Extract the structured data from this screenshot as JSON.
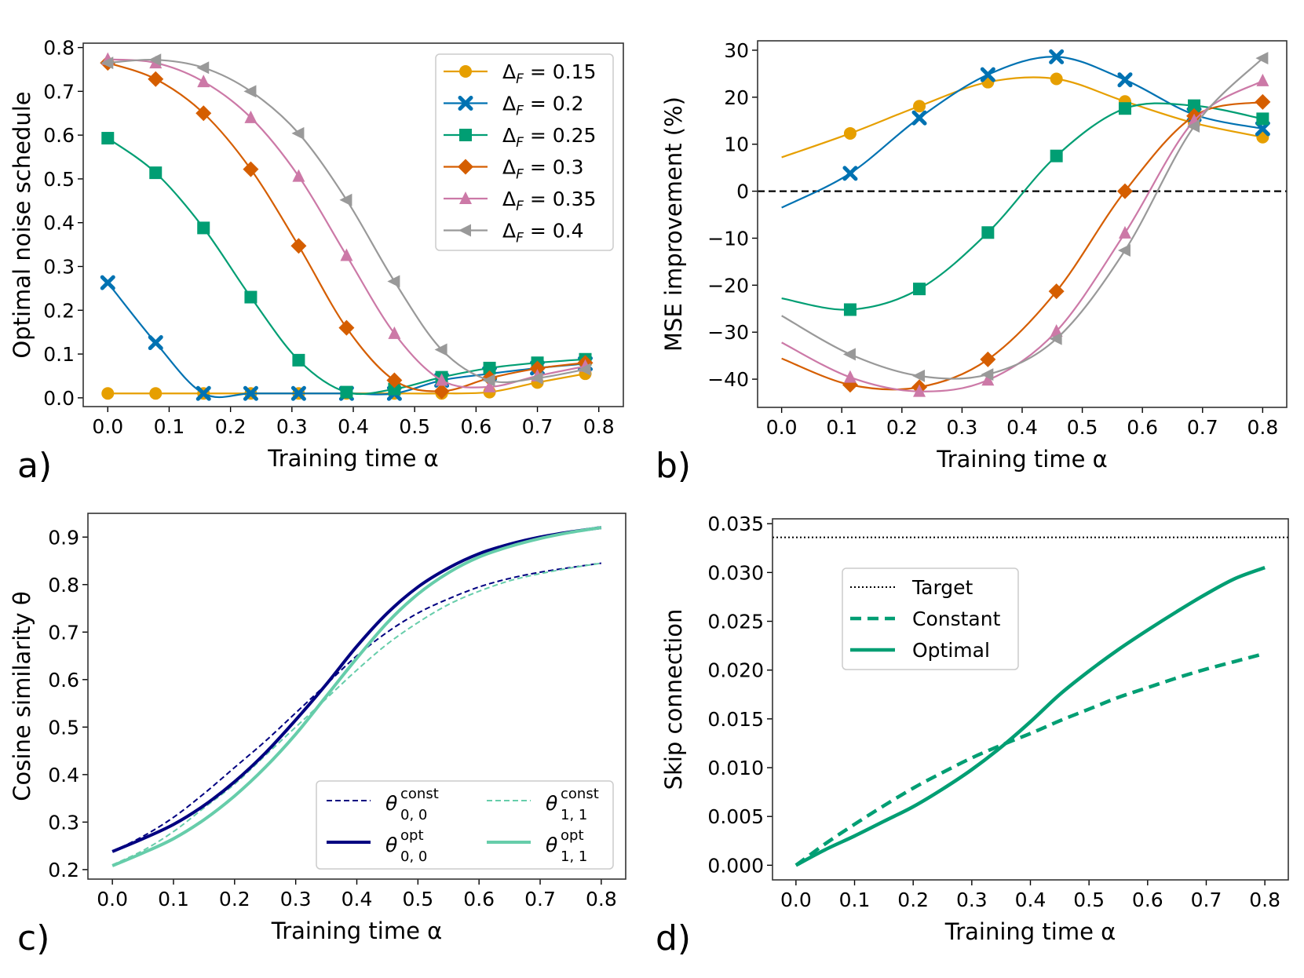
{
  "figure": {
    "panels": [
      "a)",
      "b)",
      "c)",
      "d)"
    ]
  },
  "chart_data": [
    {
      "id": "a",
      "type": "line",
      "title": "",
      "xlabel": "Training time α",
      "ylabel": "Optimal noise schedule",
      "xlim": [
        -0.04,
        0.84
      ],
      "ylim": [
        -0.02,
        0.81
      ],
      "xticks": [
        "0.0",
        "0.1",
        "0.2",
        "0.3",
        "0.4",
        "0.5",
        "0.6",
        "0.7",
        "0.8"
      ],
      "yticks": [
        "0.0",
        "0.1",
        "0.2",
        "0.3",
        "0.4",
        "0.5",
        "0.6",
        "0.7",
        "0.8"
      ],
      "grid": false,
      "legend_position": "top-right",
      "x": [
        0.0,
        0.078,
        0.156,
        0.233,
        0.311,
        0.389,
        0.467,
        0.544,
        0.622,
        0.7,
        0.778
      ],
      "series": [
        {
          "name": "Δ_F = 0.15",
          "label_main": "Δ",
          "label_sub": "F",
          "label_value": " = 0.15",
          "color": "#E69F00",
          "marker": "circle",
          "values": [
            0.01,
            0.01,
            0.01,
            0.01,
            0.01,
            0.01,
            0.01,
            0.01,
            0.013,
            0.035,
            0.055
          ]
        },
        {
          "name": "Δ_F = 0.2",
          "label_main": "Δ",
          "label_sub": "F",
          "label_value": " = 0.2",
          "color": "#0072B2",
          "marker": "x",
          "values": [
            0.263,
            0.126,
            0.01,
            0.01,
            0.01,
            0.01,
            0.01,
            0.04,
            0.055,
            0.068,
            0.078
          ]
        },
        {
          "name": "Δ_F = 0.25",
          "label_main": "Δ",
          "label_sub": "F",
          "label_value": " = 0.25",
          "color": "#009E73",
          "marker": "square",
          "values": [
            0.593,
            0.514,
            0.388,
            0.23,
            0.086,
            0.013,
            0.02,
            0.047,
            0.068,
            0.08,
            0.088
          ]
        },
        {
          "name": "Δ_F = 0.3",
          "label_main": "Δ",
          "label_sub": "F",
          "label_value": " = 0.3",
          "color": "#D55E00",
          "marker": "diamond",
          "values": [
            0.765,
            0.728,
            0.65,
            0.522,
            0.347,
            0.16,
            0.04,
            0.015,
            0.045,
            0.067,
            0.08
          ]
        },
        {
          "name": "Δ_F = 0.35",
          "label_main": "Δ",
          "label_sub": "F",
          "label_value": " = 0.35",
          "color": "#CC79A7",
          "marker": "triangle-up",
          "values": [
            0.773,
            0.765,
            0.722,
            0.64,
            0.506,
            0.325,
            0.147,
            0.04,
            0.025,
            0.05,
            0.072
          ]
        },
        {
          "name": "Δ_F = 0.4",
          "label_main": "Δ",
          "label_sub": "F",
          "label_value": " = 0.4",
          "color": "#999999",
          "marker": "triangle-left",
          "values": [
            0.765,
            0.772,
            0.754,
            0.7,
            0.604,
            0.452,
            0.266,
            0.11,
            0.04,
            0.045,
            0.065
          ]
        }
      ]
    },
    {
      "id": "b",
      "type": "line",
      "title": "",
      "xlabel": "Training time α",
      "ylabel": "MSE improvement (%)",
      "xlim": [
        -0.04,
        0.84
      ],
      "ylim": [
        -46,
        32
      ],
      "xticks": [
        "0.0",
        "0.1",
        "0.2",
        "0.3",
        "0.4",
        "0.5",
        "0.6",
        "0.7",
        "0.8"
      ],
      "yticks": [
        "−40",
        "−30",
        "−20",
        "−10",
        "0",
        "10",
        "20",
        "30"
      ],
      "ytick_values": [
        -40,
        -30,
        -20,
        -10,
        0,
        10,
        20,
        30
      ],
      "grid": false,
      "reference_line": {
        "y": 0,
        "style": "dashed",
        "color": "#000000"
      },
      "x": [
        0.0,
        0.114,
        0.229,
        0.343,
        0.457,
        0.571,
        0.686,
        0.8
      ],
      "marker_from_index": 1,
      "series": [
        {
          "name": "Δ_F = 0.15",
          "color": "#E69F00",
          "marker": "circle",
          "values": [
            7.2,
            12.3,
            18.1,
            23.2,
            23.9,
            19.1,
            14.5,
            11.5
          ]
        },
        {
          "name": "Δ_F = 0.2",
          "color": "#0072B2",
          "marker": "x",
          "values": [
            -3.5,
            3.8,
            15.6,
            24.8,
            28.6,
            23.7,
            16.3,
            13.3
          ]
        },
        {
          "name": "Δ_F = 0.25",
          "color": "#009E73",
          "marker": "square",
          "values": [
            -22.8,
            -25.2,
            -20.8,
            -8.8,
            7.5,
            17.6,
            18.2,
            15.4
          ]
        },
        {
          "name": "Δ_F = 0.3",
          "color": "#D55E00",
          "marker": "diamond",
          "values": [
            -35.6,
            -41.2,
            -41.7,
            -35.8,
            -21.3,
            0.0,
            16.0,
            19.0
          ]
        },
        {
          "name": "Δ_F = 0.35",
          "color": "#CC79A7",
          "marker": "triangle-up",
          "values": [
            -32.2,
            -39.6,
            -42.6,
            -40.2,
            -29.8,
            -8.9,
            15.0,
            23.5
          ]
        },
        {
          "name": "Δ_F = 0.4",
          "color": "#999999",
          "marker": "triangle-left",
          "values": [
            -26.5,
            -34.7,
            -39.3,
            -39.0,
            -31.4,
            -12.6,
            13.8,
            28.3
          ]
        }
      ]
    },
    {
      "id": "c",
      "type": "line",
      "title": "",
      "xlabel": "Training time α",
      "ylabel": "Cosine similarity θ",
      "xlim": [
        -0.04,
        0.84
      ],
      "ylim": [
        0.18,
        0.95
      ],
      "xticks": [
        "0.0",
        "0.1",
        "0.2",
        "0.3",
        "0.4",
        "0.5",
        "0.6",
        "0.7",
        "0.8"
      ],
      "yticks": [
        "0.2",
        "0.3",
        "0.4",
        "0.5",
        "0.6",
        "0.7",
        "0.8",
        "0.9"
      ],
      "grid": false,
      "legend_position": "lower-right",
      "x": [
        0.0,
        0.05,
        0.1,
        0.15,
        0.2,
        0.25,
        0.3,
        0.35,
        0.4,
        0.45,
        0.5,
        0.55,
        0.6,
        0.65,
        0.7,
        0.75,
        0.8
      ],
      "series": [
        {
          "name": "θ_{0,0}^{const}",
          "label_main": "θ",
          "label_sub": "0, 0",
          "label_sup": "const",
          "color": "#000080",
          "style": "dashed",
          "width": "thin",
          "values": [
            0.238,
            0.27,
            0.31,
            0.36,
            0.415,
            0.47,
            0.53,
            0.59,
            0.65,
            0.7,
            0.74,
            0.77,
            0.795,
            0.813,
            0.826,
            0.836,
            0.845
          ]
        },
        {
          "name": "θ_{1,1}^{const}",
          "label_main": "θ",
          "label_sub": "1, 1",
          "label_sup": "const",
          "color": "#66CDAA",
          "style": "dashed",
          "width": "thin",
          "values": [
            0.21,
            0.24,
            0.28,
            0.33,
            0.38,
            0.44,
            0.5,
            0.56,
            0.62,
            0.675,
            0.72,
            0.758,
            0.786,
            0.808,
            0.823,
            0.835,
            0.845
          ]
        },
        {
          "name": "θ_{0,0}^{opt}",
          "label_main": "θ",
          "label_sub": "0, 0",
          "label_sup": "opt",
          "color": "#000080",
          "style": "solid",
          "width": "thick",
          "values": [
            0.238,
            0.265,
            0.295,
            0.335,
            0.385,
            0.445,
            0.515,
            0.59,
            0.67,
            0.74,
            0.795,
            0.835,
            0.865,
            0.885,
            0.9,
            0.911,
            0.92
          ]
        },
        {
          "name": "θ_{1,1}^{opt}",
          "label_main": "θ",
          "label_sub": "1, 1",
          "label_sup": "opt",
          "color": "#66CDAA",
          "style": "solid",
          "width": "thick",
          "values": [
            0.208,
            0.235,
            0.265,
            0.305,
            0.355,
            0.415,
            0.485,
            0.565,
            0.645,
            0.72,
            0.78,
            0.825,
            0.858,
            0.88,
            0.897,
            0.91,
            0.92
          ]
        }
      ]
    },
    {
      "id": "d",
      "type": "line",
      "title": "",
      "xlabel": "Training time α",
      "ylabel": "Skip connection",
      "xlim": [
        -0.04,
        0.84
      ],
      "ylim": [
        -0.0015,
        0.0355
      ],
      "xticks": [
        "0.0",
        "0.1",
        "0.2",
        "0.3",
        "0.4",
        "0.5",
        "0.6",
        "0.7",
        "0.8"
      ],
      "yticks": [
        "0.000",
        "0.005",
        "0.010",
        "0.015",
        "0.020",
        "0.025",
        "0.030",
        "0.035"
      ],
      "grid": false,
      "legend_position": "upper-left",
      "x": [
        0.0,
        0.05,
        0.1,
        0.15,
        0.2,
        0.25,
        0.3,
        0.35,
        0.4,
        0.45,
        0.5,
        0.55,
        0.6,
        0.65,
        0.7,
        0.75,
        0.8
      ],
      "series": [
        {
          "name": "Target",
          "color": "#000000",
          "style": "dotted",
          "constant": 0.0336
        },
        {
          "name": "Constant",
          "color": "#009E73",
          "style": "dashed",
          "values": [
            0.0,
            0.0022,
            0.0042,
            0.0061,
            0.0079,
            0.0095,
            0.011,
            0.0123,
            0.0135,
            0.0148,
            0.016,
            0.0172,
            0.0182,
            0.0192,
            0.0201,
            0.0209,
            0.0217
          ]
        },
        {
          "name": "Optimal",
          "color": "#009E73",
          "style": "solid",
          "values": [
            0.0,
            0.0016,
            0.003,
            0.0045,
            0.006,
            0.0078,
            0.0098,
            0.0121,
            0.0147,
            0.0175,
            0.0199,
            0.0221,
            0.0241,
            0.026,
            0.0278,
            0.0294,
            0.0305
          ]
        }
      ]
    }
  ]
}
